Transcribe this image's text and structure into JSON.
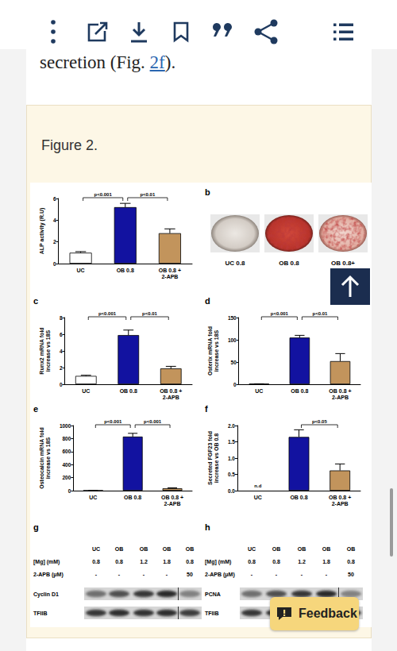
{
  "text": {
    "before": "secretion (Fig. ",
    "link": "2f",
    "after": ")."
  },
  "figure_title": "Figure 2.",
  "chart_data": [
    {
      "type": "bar",
      "ylabel": "ALP activity (R.U)",
      "categories": [
        "UC",
        "OB 0.8",
        "OB 0.8 + 2-APB"
      ],
      "values": [
        1.0,
        5.2,
        2.8
      ],
      "errors": [
        0.1,
        0.35,
        0.4
      ],
      "colors": [
        "#ffffff",
        "#1212a0",
        "#c2945c"
      ],
      "ylim": [
        0,
        6
      ],
      "yticks": [
        0,
        2,
        4,
        6
      ],
      "grid": false,
      "annotations": [
        {
          "text": "p<0.001",
          "between": [
            0,
            1
          ]
        },
        {
          "text": "p<0.01",
          "between": [
            1,
            2
          ]
        }
      ]
    },
    {
      "type": "bar",
      "panel": "c",
      "ylabel": "Runx2 mRNA fold increase vs 18S",
      "categories": [
        "UC",
        "OB 0.8",
        "OB 0.8 + 2-APB"
      ],
      "values": [
        1.0,
        5.9,
        1.9
      ],
      "errors": [
        0.08,
        0.6,
        0.25
      ],
      "colors": [
        "#ffffff",
        "#1212a0",
        "#c2945c"
      ],
      "ylim": [
        0,
        8
      ],
      "yticks": [
        0,
        2,
        4,
        6,
        8
      ],
      "grid": false,
      "annotations": [
        {
          "text": "p<0.001",
          "between": [
            0,
            1
          ]
        },
        {
          "text": "p<0.01",
          "between": [
            1,
            2
          ]
        }
      ]
    },
    {
      "type": "bar",
      "panel": "d",
      "ylabel": "Osterix mRNA fold increase vs 18S",
      "categories": [
        "UC",
        "OB 0.8",
        "OB 0.8 + 2-APB"
      ],
      "values": [
        1,
        105,
        52
      ],
      "errors": [
        0,
        5,
        17
      ],
      "colors": [
        "#ffffff",
        "#1212a0",
        "#c2945c"
      ],
      "ylim": [
        0,
        150
      ],
      "yticks": [
        0,
        50,
        100,
        150
      ],
      "grid": false,
      "annotations": [
        {
          "text": "p<0.001",
          "between": [
            0,
            1
          ]
        },
        {
          "text": "p<0.01",
          "between": [
            1,
            2
          ]
        }
      ]
    },
    {
      "type": "bar",
      "panel": "e",
      "ylabel": "Osteocalcin mRNA fold increase vs 18S",
      "categories": [
        "UC",
        "OB 0.8",
        "OB 0.8 + 2-APB"
      ],
      "values": [
        2,
        830,
        35
      ],
      "errors": [
        0,
        50,
        8
      ],
      "colors": [
        "#ffffff",
        "#1212a0",
        "#c2945c"
      ],
      "ylim": [
        0,
        1000
      ],
      "yticks": [
        0,
        200,
        400,
        600,
        800,
        1000
      ],
      "grid": false,
      "annotations": [
        {
          "text": "p<0.001",
          "between": [
            0,
            1
          ]
        },
        {
          "text": "p<0.001",
          "between": [
            1,
            2
          ]
        }
      ]
    },
    {
      "type": "bar",
      "panel": "f",
      "ylabel": "Secreted FGF23 fold increase vs OB 0.8",
      "categories": [
        "UC",
        "OB 0.8",
        "OB 0.8 + 2-APB"
      ],
      "values": [
        null,
        1.65,
        0.62
      ],
      "errors": [
        null,
        0.22,
        0.2
      ],
      "value_labels": [
        "n.d",
        null,
        null
      ],
      "colors": [
        "#ffffff",
        "#1212a0",
        "#c2945c"
      ],
      "ylim": [
        0,
        2.0
      ],
      "yticks": [
        {
          "value": 0,
          "label": "0.0"
        },
        {
          "value": 0.5,
          "label": "0.5"
        },
        {
          "value": 1.0,
          "label": "1.0"
        },
        {
          "value": 1.5,
          "label": "1.5"
        },
        {
          "value": 2.0,
          "label": "2.0"
        }
      ],
      "grid": false,
      "annotations": [
        {
          "text": "p<0.05",
          "between": [
            1,
            2
          ]
        }
      ]
    }
  ],
  "images": {
    "panel": "b",
    "labels": [
      "UC 0.8",
      "OB 0.8",
      "OB 0.8+"
    ]
  },
  "blots": [
    {
      "panel": "g",
      "lanes": [
        "UC",
        "OB",
        "OB",
        "OB",
        "OB"
      ],
      "conditions": [
        {
          "label": "[Mg] (mM)",
          "values": [
            "0.8",
            "0.8",
            "1.2",
            "1.8",
            "0.8"
          ]
        },
        {
          "label": "2-APB (μM)",
          "values": [
            "-",
            "-",
            "-",
            "-",
            "50"
          ]
        }
      ],
      "bands": [
        "Cyclin D1",
        "TFIIB"
      ]
    },
    {
      "panel": "h",
      "lanes": [
        "UC",
        "OB",
        "OB",
        "OB",
        "OB"
      ],
      "conditions": [
        {
          "label": "[Mg] (mM)",
          "values": [
            "0.8",
            "0.8",
            "1.2",
            "1.8",
            "0.8"
          ]
        },
        {
          "label": "2-APB (μM)",
          "values": [
            "-",
            "-",
            "-",
            "-",
            "50"
          ]
        }
      ],
      "bands": [
        "PCNA",
        "TFIIB"
      ]
    }
  ],
  "feedback": "Feedback"
}
